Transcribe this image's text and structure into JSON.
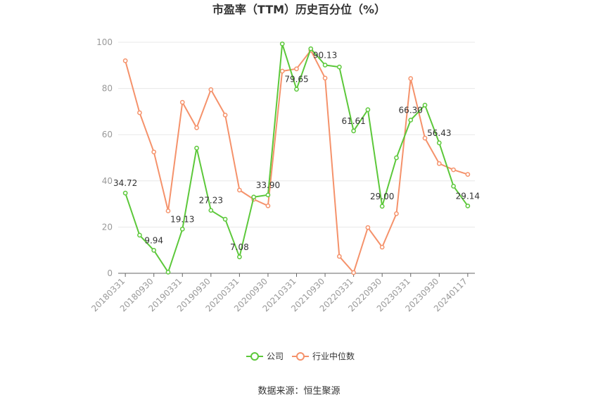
{
  "chart_data": {
    "type": "line",
    "title": "市盈率（TTM）历史百分位（%）",
    "source": "数据来源：恒生聚源",
    "ylim": [
      0,
      100
    ],
    "yticks": [
      0,
      20,
      40,
      60,
      80,
      100
    ],
    "categories": [
      "20180331",
      "20180630",
      "20180930",
      "20181231",
      "20190331",
      "20190630",
      "20190930",
      "20191231",
      "20200331",
      "20200630",
      "20200930",
      "20201231",
      "20210331",
      "20210630",
      "20210930",
      "20211231",
      "20220331",
      "20220630",
      "20220930",
      "20221231",
      "20230331",
      "20230630",
      "20230930",
      "20231231",
      "20240117"
    ],
    "tick_labels": [
      "20180331",
      "20180930",
      "20190331",
      "20190930",
      "20200331",
      "20200930",
      "20210331",
      "20210930",
      "20220331",
      "20220930",
      "20230331",
      "20230930",
      "20240117"
    ],
    "series": [
      {
        "name": "公司",
        "color": "#5cc83a",
        "values": [
          34.72,
          16.5,
          9.94,
          0.5,
          19.13,
          54.2,
          27.23,
          23.4,
          7.08,
          33.0,
          33.9,
          99.3,
          79.65,
          97.2,
          90.13,
          89.3,
          61.61,
          70.8,
          29.0,
          50.0,
          66.3,
          72.8,
          56.43,
          37.7,
          29.14
        ],
        "labels": {
          "0": "34.72",
          "2": "9.94",
          "4": "19.13",
          "6": "27.23",
          "8": "7.08",
          "10": "33.90",
          "12": "79.65",
          "14": "90.13",
          "16": "61.61",
          "18": "29.00",
          "20": "66.30",
          "22": "56.43",
          "24": "29.14"
        }
      },
      {
        "name": "行业中位数",
        "color": "#f5926b",
        "values": [
          92.0,
          69.5,
          52.5,
          27.0,
          74.0,
          63.0,
          79.5,
          68.5,
          36.0,
          32.0,
          29.2,
          87.5,
          88.5,
          96.5,
          84.5,
          7.3,
          0.3,
          19.8,
          11.3,
          25.8,
          84.3,
          58.5,
          47.5,
          44.8,
          42.8
        ],
        "labels": {}
      }
    ],
    "legend_position": "bottom-center"
  }
}
